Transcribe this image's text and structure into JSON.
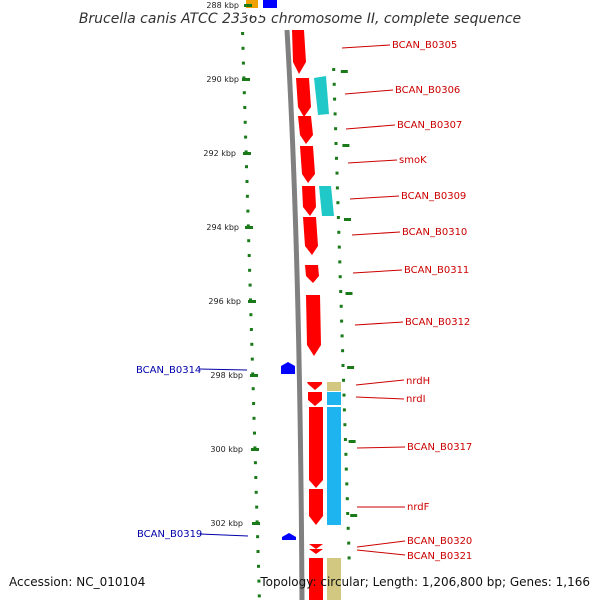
{
  "title": "Brucella canis ATCC 23365 chromosome II, complete sequence",
  "footer": {
    "accession": "Accession: NC_010104",
    "summary": "Topology: circular; Length: 1,206,800 bp; Genes: 1,166"
  },
  "colors": {
    "forward_gene": "#ff0000",
    "reverse_gene": "#0000ff",
    "teal_feature": "#20c8c8",
    "blue_feature": "#1eb4f0",
    "khaki_feature": "#d2c882",
    "tick": "#1a7a1a",
    "backbone": "#808080",
    "forward_label": "#cc0000",
    "reverse_label": "#0000aa"
  },
  "ticks": [
    {
      "label": "288 kbp"
    },
    {
      "label": "290 kbp"
    },
    {
      "label": "292 kbp"
    },
    {
      "label": "294 kbp"
    },
    {
      "label": "296 kbp"
    },
    {
      "label": "298 kbp"
    },
    {
      "label": "300 kbp"
    },
    {
      "label": "302 kbp"
    }
  ],
  "forward_genes": [
    {
      "label": "BCAN_B0305"
    },
    {
      "label": "BCAN_B0306"
    },
    {
      "label": "BCAN_B0307"
    },
    {
      "label": "smoK"
    },
    {
      "label": "BCAN_B0309"
    },
    {
      "label": "BCAN_B0310"
    },
    {
      "label": "BCAN_B0311"
    },
    {
      "label": "BCAN_B0312"
    },
    {
      "label": "nrdH"
    },
    {
      "label": "nrdI"
    },
    {
      "label": "BCAN_B0317"
    },
    {
      "label": "nrdF"
    },
    {
      "label": "BCAN_B0320"
    },
    {
      "label": "BCAN_B0321"
    }
  ],
  "reverse_genes": [
    {
      "label": "BCAN_B0314"
    },
    {
      "label": "BCAN_B0319"
    }
  ]
}
